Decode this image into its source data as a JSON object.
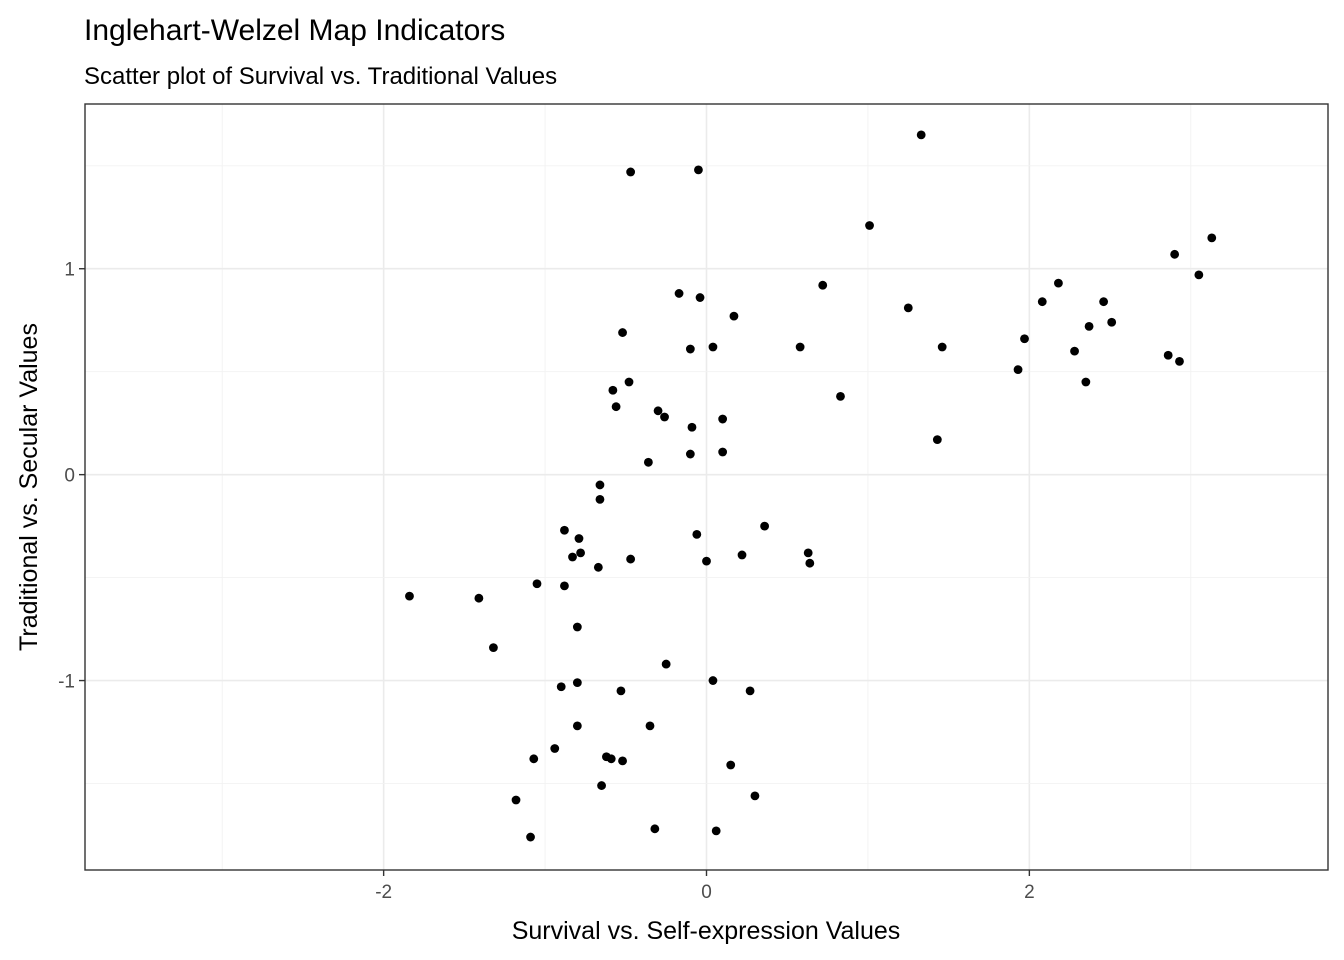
{
  "chart_data": {
    "type": "scatter",
    "title": "Inglehart-Welzel Map Indicators",
    "subtitle": "Scatter plot of Survival vs. Traditional Values",
    "xlabel": "Survival vs. Self-expression Values",
    "ylabel": "Traditional vs. Secular Values",
    "xlim": [
      -3.85,
      3.85
    ],
    "ylim": [
      -1.92,
      1.8
    ],
    "x_ticks": [
      -2,
      0,
      2
    ],
    "x_tick_labels": [
      "-2",
      "0",
      "2"
    ],
    "y_ticks": [
      -1,
      0,
      1
    ],
    "y_tick_labels": [
      "-1",
      "0",
      "1"
    ],
    "grid": true,
    "points": [
      {
        "x": -0.47,
        "y": 1.47
      },
      {
        "x": -0.05,
        "y": 1.48
      },
      {
        "x": 1.33,
        "y": 1.65
      },
      {
        "x": 1.01,
        "y": 1.21
      },
      {
        "x": 3.13,
        "y": 1.15
      },
      {
        "x": 2.9,
        "y": 1.07
      },
      {
        "x": 3.05,
        "y": 0.97
      },
      {
        "x": 0.72,
        "y": 0.92
      },
      {
        "x": 2.18,
        "y": 0.93
      },
      {
        "x": -0.17,
        "y": 0.88
      },
      {
        "x": -0.04,
        "y": 0.86
      },
      {
        "x": 2.08,
        "y": 0.84
      },
      {
        "x": 2.46,
        "y": 0.84
      },
      {
        "x": 1.25,
        "y": 0.81
      },
      {
        "x": 0.17,
        "y": 0.77
      },
      {
        "x": 2.51,
        "y": 0.74
      },
      {
        "x": 2.37,
        "y": 0.72
      },
      {
        "x": -0.52,
        "y": 0.69
      },
      {
        "x": 1.97,
        "y": 0.66
      },
      {
        "x": 1.46,
        "y": 0.62
      },
      {
        "x": 0.04,
        "y": 0.62
      },
      {
        "x": -0.1,
        "y": 0.61
      },
      {
        "x": 0.58,
        "y": 0.62
      },
      {
        "x": 2.28,
        "y": 0.6
      },
      {
        "x": 2.86,
        "y": 0.58
      },
      {
        "x": 2.93,
        "y": 0.55
      },
      {
        "x": 1.93,
        "y": 0.51
      },
      {
        "x": -0.48,
        "y": 0.45
      },
      {
        "x": 2.35,
        "y": 0.45
      },
      {
        "x": -0.58,
        "y": 0.41
      },
      {
        "x": 0.83,
        "y": 0.38
      },
      {
        "x": -0.56,
        "y": 0.33
      },
      {
        "x": -0.3,
        "y": 0.31
      },
      {
        "x": -0.26,
        "y": 0.28
      },
      {
        "x": 0.1,
        "y": 0.27
      },
      {
        "x": -0.09,
        "y": 0.23
      },
      {
        "x": 1.43,
        "y": 0.17
      },
      {
        "x": 0.1,
        "y": 0.11
      },
      {
        "x": -0.1,
        "y": 0.1
      },
      {
        "x": -0.36,
        "y": 0.06
      },
      {
        "x": -0.66,
        "y": -0.05
      },
      {
        "x": -0.66,
        "y": -0.12
      },
      {
        "x": 0.36,
        "y": -0.25
      },
      {
        "x": -0.88,
        "y": -0.27
      },
      {
        "x": -0.06,
        "y": -0.29
      },
      {
        "x": -0.79,
        "y": -0.31
      },
      {
        "x": 0.63,
        "y": -0.38
      },
      {
        "x": -0.78,
        "y": -0.38
      },
      {
        "x": 0.22,
        "y": -0.39
      },
      {
        "x": -0.83,
        "y": -0.4
      },
      {
        "x": -0.47,
        "y": -0.41
      },
      {
        "x": 0.0,
        "y": -0.42
      },
      {
        "x": 0.64,
        "y": -0.43
      },
      {
        "x": -0.67,
        "y": -0.45
      },
      {
        "x": -1.05,
        "y": -0.53
      },
      {
        "x": -0.88,
        "y": -0.54
      },
      {
        "x": -1.84,
        "y": -0.59
      },
      {
        "x": -1.41,
        "y": -0.6
      },
      {
        "x": -0.8,
        "y": -0.74
      },
      {
        "x": -1.32,
        "y": -0.84
      },
      {
        "x": -0.25,
        "y": -0.92
      },
      {
        "x": 0.04,
        "y": -1.0
      },
      {
        "x": -0.8,
        "y": -1.01
      },
      {
        "x": -0.9,
        "y": -1.03
      },
      {
        "x": -0.53,
        "y": -1.05
      },
      {
        "x": 0.27,
        "y": -1.05
      },
      {
        "x": -0.8,
        "y": -1.22
      },
      {
        "x": -0.35,
        "y": -1.22
      },
      {
        "x": -0.94,
        "y": -1.33
      },
      {
        "x": -1.07,
        "y": -1.38
      },
      {
        "x": -0.62,
        "y": -1.37
      },
      {
        "x": -0.59,
        "y": -1.38
      },
      {
        "x": -0.52,
        "y": -1.39
      },
      {
        "x": 0.15,
        "y": -1.41
      },
      {
        "x": -0.65,
        "y": -1.51
      },
      {
        "x": 0.3,
        "y": -1.56
      },
      {
        "x": -1.18,
        "y": -1.58
      },
      {
        "x": -0.32,
        "y": -1.72
      },
      {
        "x": 0.06,
        "y": -1.73
      },
      {
        "x": -1.09,
        "y": -1.76
      }
    ]
  }
}
